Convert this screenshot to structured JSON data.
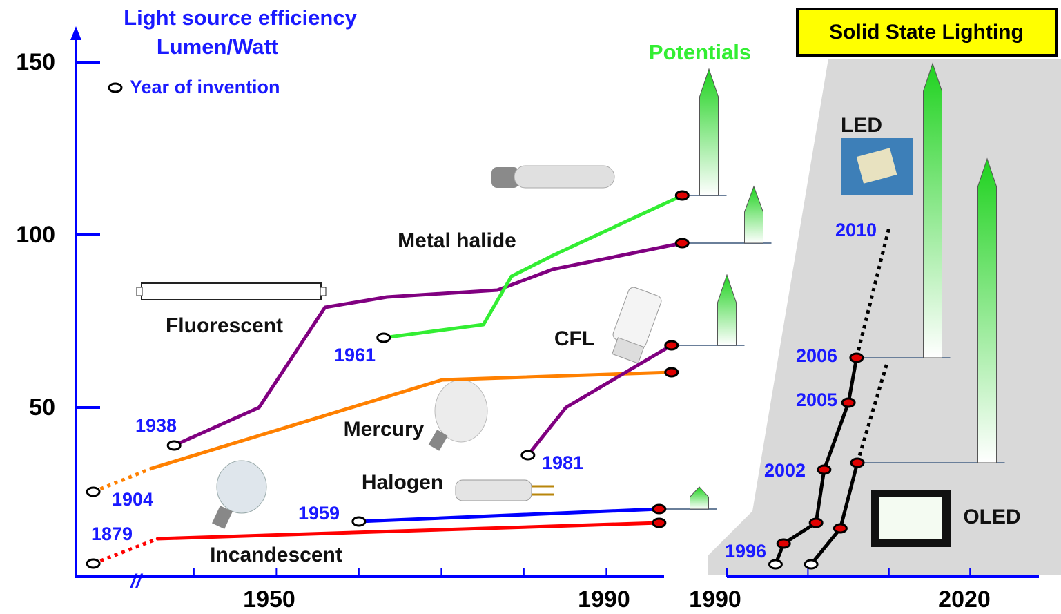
{
  "chart_data": [
    {
      "type": "line",
      "title": "Light source efficiency",
      "subtitle": "Lumen/Watt",
      "annotations": {
        "invention": "Year of invention",
        "potentials": "Potentials",
        "axis_break": "//"
      },
      "xlim": [
        1925.7,
        1997
      ],
      "ylim": [
        0,
        160
      ],
      "yticks": [
        50,
        100,
        150
      ],
      "xticks": [
        {
          "value": 1940,
          "label": null
        },
        1950,
        {
          "value": 1960,
          "label": null
        },
        {
          "value": 1970,
          "label": null
        },
        {
          "value": 1980,
          "label": null
        },
        1990
      ],
      "series": [
        {
          "name": "Incandescent",
          "color": "#ff0000",
          "invention_year": 1879,
          "x": [
            1927.8,
            1935.6,
            1996.4
          ],
          "values": [
            4.8,
            12,
            16.6
          ],
          "dashed_segments": [
            0
          ]
        },
        {
          "name": "Halogen",
          "color": "#0000ff",
          "invention_year": 1959,
          "x": [
            1960.0,
            1996.4
          ],
          "values": [
            17,
            20.6
          ],
          "dashed_segments": [],
          "potential": 27
        },
        {
          "name": "Mercury",
          "color": "#ff8000",
          "invention_year": 1904,
          "x": [
            1927.8,
            1934.9,
            1970.1,
            1997.9
          ],
          "values": [
            25.6,
            32.4,
            58,
            60.2
          ],
          "dashed_segments": [
            0
          ]
        },
        {
          "name": "Fluorescent",
          "color": "#800080",
          "invention_year": 1938,
          "x": [
            1937.6,
            1947.9,
            1955.9,
            1963.4,
            1976.8,
            1983.5,
            1999.2
          ],
          "values": [
            39,
            50,
            79,
            82,
            84,
            90,
            97.6
          ],
          "dashed_segments": [],
          "potential": 114
        },
        {
          "name": "Metal halide",
          "color": "#33ee33",
          "invention_year": 1961,
          "x": [
            1963.0,
            1975.1,
            1978.5,
            1983.5,
            1999.2
          ],
          "values": [
            70.2,
            74,
            88,
            94,
            111.4
          ],
          "dashed_segments": [],
          "potential": 148
        },
        {
          "name": "CFL",
          "color": "#800080",
          "invention_year": 1981,
          "x": [
            1980.5,
            1985.1,
            1997.9
          ],
          "values": [
            36.2,
            50,
            68
          ],
          "dashed_segments": [],
          "potential": 88.4
        }
      ]
    },
    {
      "type": "line",
      "title": "Solid State Lighting",
      "xlim": [
        1990,
        2028.5
      ],
      "ylim": [
        0,
        160
      ],
      "xticks": [
        1990,
        {
          "value": 2000,
          "label": null
        },
        {
          "value": 2010,
          "label": null
        },
        2020
      ],
      "series": [
        {
          "name": "LED",
          "color": "#000000",
          "x": [
            1996,
            1997,
            2001,
            2002,
            2005,
            2006,
            2010
          ],
          "values": [
            4.6,
            10.6,
            16.6,
            32,
            51.4,
            64.4,
            102
          ],
          "dashed_segments": [
            5
          ],
          "potential": 149.6
        },
        {
          "name": "OLED",
          "color": "#000000",
          "x": [
            2000.4,
            2004,
            2006.1,
            2009.7
          ],
          "values": [
            4.6,
            15,
            34,
            62.4
          ],
          "dashed_segments": [
            2
          ],
          "potential": 122
        }
      ]
    }
  ]
}
